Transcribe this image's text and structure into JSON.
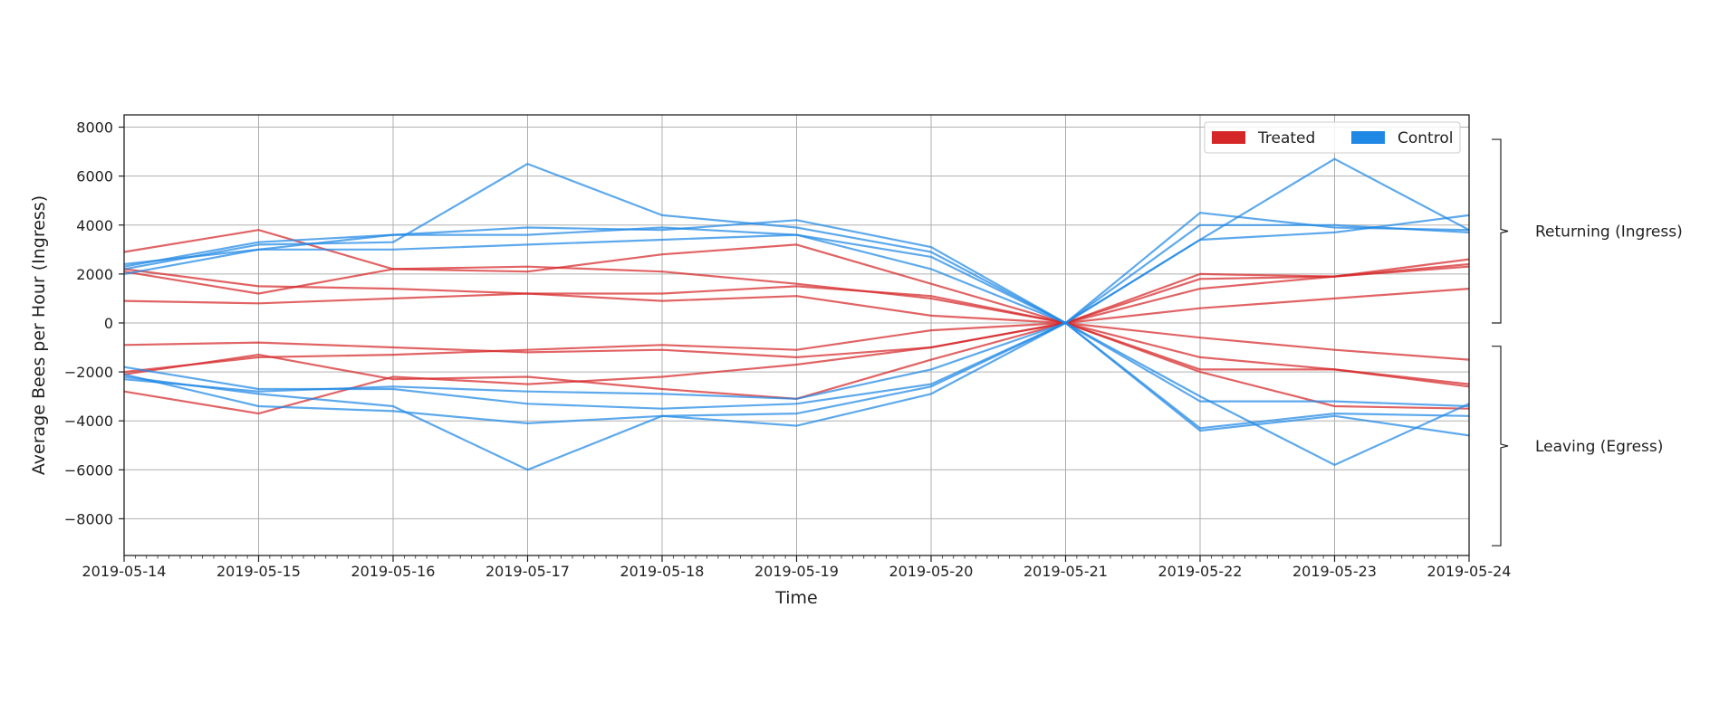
{
  "colors": {
    "treated": "#d62728",
    "control": "#1f88e5"
  },
  "chart_data": {
    "type": "line",
    "xlabel": "Time",
    "ylabel": "Average Bees per Hour (Ingress)",
    "x": [
      "2019-05-14",
      "2019-05-15",
      "2019-05-16",
      "2019-05-17",
      "2019-05-18",
      "2019-05-19",
      "2019-05-20",
      "2019-05-21",
      "2019-05-22",
      "2019-05-23",
      "2019-05-24"
    ],
    "ylim": [
      -9500,
      8500
    ],
    "yticks": [
      -8000,
      -6000,
      -4000,
      -2000,
      0,
      2000,
      4000,
      6000,
      8000
    ],
    "grid": true,
    "legend": {
      "placement": "top-right",
      "entries": [
        {
          "label": "Treated",
          "color": "#d62728"
        },
        {
          "label": "Control",
          "color": "#1f88e5"
        }
      ]
    },
    "annotations": [
      {
        "text": "Returning (Ingress)",
        "range": [
          0,
          7500
        ]
      },
      {
        "text": "Leaving (Egress)",
        "range": [
          -9100,
          -950
        ]
      }
    ],
    "series": [
      {
        "group": "treated",
        "values": [
          2900,
          3800,
          2200,
          2100,
          2800,
          3200,
          1600,
          0,
          1800,
          1900,
          2600
        ]
      },
      {
        "group": "treated",
        "values": [
          2200,
          1500,
          1400,
          1200,
          1200,
          1500,
          1100,
          0,
          2000,
          1900,
          2300
        ]
      },
      {
        "group": "treated",
        "values": [
          2100,
          1200,
          2200,
          2300,
          2100,
          1600,
          1000,
          0,
          1400,
          1900,
          2400
        ]
      },
      {
        "group": "treated",
        "values": [
          900,
          800,
          1000,
          1200,
          900,
          1100,
          300,
          0,
          600,
          1000,
          1400
        ]
      },
      {
        "group": "treated",
        "values": [
          -900,
          -800,
          -1000,
          -1200,
          -1100,
          -1400,
          -1000,
          0,
          -600,
          -1100,
          -1500
        ]
      },
      {
        "group": "treated",
        "values": [
          -2000,
          -1400,
          -1300,
          -1100,
          -900,
          -1100,
          -300,
          0,
          -1400,
          -1900,
          -2500
        ]
      },
      {
        "group": "treated",
        "values": [
          -2100,
          -1300,
          -2300,
          -2200,
          -2700,
          -3100,
          -1500,
          0,
          -2000,
          -3400,
          -3500
        ]
      },
      {
        "group": "treated",
        "values": [
          -2800,
          -3700,
          -2200,
          -2500,
          -2200,
          -1700,
          -1000,
          0,
          -1900,
          -1900,
          -2600
        ]
      },
      {
        "group": "control",
        "values": [
          2400,
          3000,
          3600,
          3900,
          3800,
          4200,
          3100,
          0,
          4500,
          3900,
          3800
        ]
      },
      {
        "group": "control",
        "values": [
          2200,
          3200,
          3300,
          6500,
          4400,
          3900,
          2900,
          0,
          4000,
          4000,
          3700
        ]
      },
      {
        "group": "control",
        "values": [
          2300,
          3300,
          3600,
          3600,
          3900,
          3600,
          2700,
          0,
          3400,
          6700,
          3800
        ]
      },
      {
        "group": "control",
        "values": [
          2000,
          3000,
          3000,
          3200,
          3400,
          3600,
          2200,
          0,
          3400,
          3700,
          4400
        ]
      },
      {
        "group": "control",
        "values": [
          -1800,
          -2700,
          -2700,
          -3300,
          -3500,
          -3300,
          -2500,
          0,
          -3200,
          -3200,
          -3400
        ]
      },
      {
        "group": "control",
        "values": [
          -2100,
          -3400,
          -3600,
          -4100,
          -3800,
          -4200,
          -2900,
          0,
          -4400,
          -3800,
          -4600
        ]
      },
      {
        "group": "control",
        "values": [
          -2200,
          -2900,
          -3400,
          -6000,
          -3800,
          -3700,
          -2600,
          0,
          -3000,
          -5800,
          -3300
        ]
      },
      {
        "group": "control",
        "values": [
          -2300,
          -2800,
          -2600,
          -2800,
          -2900,
          -3100,
          -1900,
          0,
          -4300,
          -3700,
          -3800
        ]
      }
    ]
  }
}
